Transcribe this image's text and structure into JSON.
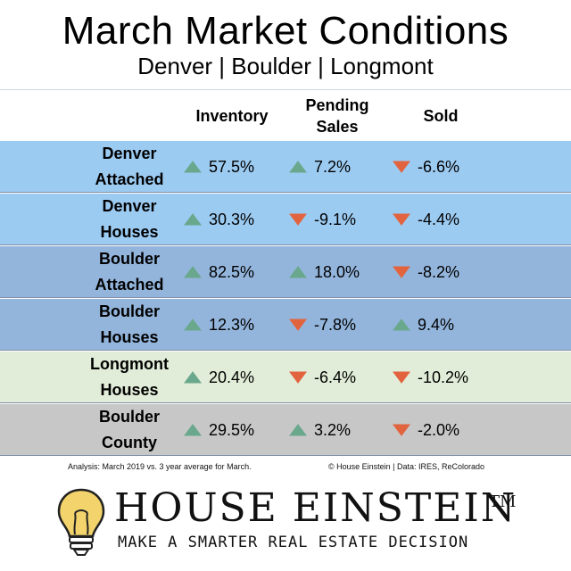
{
  "header": {
    "title": "March Market Conditions",
    "subtitle": "Denver | Boulder | Longmont"
  },
  "columns": [
    {
      "lines": [
        "Inventory"
      ]
    },
    {
      "lines": [
        "Pending",
        "Sales"
      ]
    },
    {
      "lines": [
        "Sold"
      ]
    }
  ],
  "rows": [
    {
      "label": [
        "Denver",
        "Attached"
      ],
      "bg": "#9ccbf2",
      "cells": [
        {
          "value": "57.5%",
          "dir": "up"
        },
        {
          "value": "7.2%",
          "dir": "up"
        },
        {
          "value": "-6.6%",
          "dir": "down"
        }
      ]
    },
    {
      "label": [
        "Denver",
        "Houses"
      ],
      "bg": "#9ccbf2",
      "cells": [
        {
          "value": "30.3%",
          "dir": "up"
        },
        {
          "value": "-9.1%",
          "dir": "down"
        },
        {
          "value": "-4.4%",
          "dir": "down"
        }
      ]
    },
    {
      "label": [
        "Boulder",
        "Attached"
      ],
      "bg": "#93b5dc",
      "cells": [
        {
          "value": "82.5%",
          "dir": "up"
        },
        {
          "value": "18.0%",
          "dir": "up"
        },
        {
          "value": "-8.2%",
          "dir": "down"
        }
      ]
    },
    {
      "label": [
        "Boulder",
        "Houses"
      ],
      "bg": "#93b5dc",
      "cells": [
        {
          "value": "12.3%",
          "dir": "up"
        },
        {
          "value": "-7.8%",
          "dir": "down"
        },
        {
          "value": "9.4%",
          "dir": "up"
        }
      ]
    },
    {
      "label": [
        "Longmont",
        "Houses"
      ],
      "bg": "#e1edd8",
      "cells": [
        {
          "value": "20.4%",
          "dir": "up"
        },
        {
          "value": "-6.4%",
          "dir": "down"
        },
        {
          "value": "-10.2%",
          "dir": "down"
        }
      ]
    },
    {
      "label": [
        "Boulder",
        "County"
      ],
      "bg": "#c7c7c7",
      "cells": [
        {
          "value": "29.5%",
          "dir": "up"
        },
        {
          "value": "3.2%",
          "dir": "up"
        },
        {
          "value": "-2.0%",
          "dir": "down"
        }
      ]
    }
  ],
  "footnotes": {
    "analysis": "Analysis: March 2019 vs. 3 year average for March.",
    "credit": "© House Einstein | Data: IRES, ReColorado"
  },
  "brand": {
    "name": "HOUSE EINSTEIN",
    "trademark": "TM",
    "tagline": "MAKE A SMARTER REAL ESTATE DECISION"
  },
  "colors": {
    "up_arrow": "#6aa88d",
    "down_arrow": "#e2643f",
    "bulb": "#f3d36b"
  },
  "icons": {
    "up": "triangle-up-icon",
    "down": "triangle-down-icon",
    "logo": "lightbulb-icon"
  }
}
